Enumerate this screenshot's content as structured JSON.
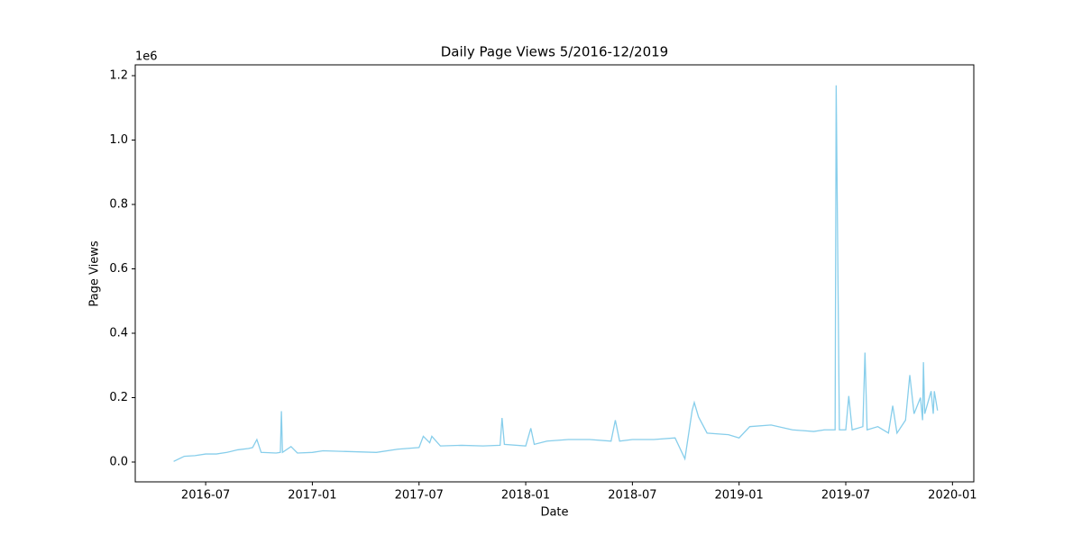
{
  "chart_data": {
    "type": "line",
    "title": "Daily Page Views 5/2016-12/2019",
    "x_label": "Date",
    "y_label": "Page Views",
    "y_offset_label": "1e6",
    "x": [
      2016.35,
      2016.4,
      2016.45,
      2016.5,
      2016.55,
      2016.6,
      2016.65,
      2016.7,
      2016.72,
      2016.74,
      2016.76,
      2016.83,
      2016.85,
      2016.855,
      2016.86,
      2016.9,
      2016.93,
      2017.0,
      2017.05,
      2017.2,
      2017.3,
      2017.4,
      2017.5,
      2017.52,
      2017.55,
      2017.56,
      2017.6,
      2017.7,
      2017.8,
      2017.88,
      2017.889,
      2017.9,
      2018.0,
      2018.024,
      2018.04,
      2018.1,
      2018.2,
      2018.3,
      2018.4,
      2018.42,
      2018.44,
      2018.5,
      2018.6,
      2018.7,
      2018.746,
      2018.78,
      2018.79,
      2018.81,
      2018.85,
      2018.95,
      2019.0,
      2019.05,
      2019.15,
      2019.25,
      2019.35,
      2019.4,
      2019.45,
      2019.455,
      2019.47,
      2019.5,
      2019.514,
      2019.53,
      2019.58,
      2019.59,
      2019.6,
      2019.65,
      2019.7,
      2019.72,
      2019.74,
      2019.78,
      2019.8,
      2019.82,
      2019.85,
      2019.86,
      2019.864,
      2019.87,
      2019.9,
      2019.91,
      2019.915,
      2019.93
    ],
    "series": [
      {
        "name": "Page Views",
        "color": "#87ceeb",
        "values": [
          2000,
          18000,
          20000,
          25000,
          25000,
          30000,
          38000,
          42000,
          45000,
          70000,
          30000,
          28000,
          30000,
          158000,
          30000,
          48000,
          28000,
          30000,
          35000,
          32000,
          30000,
          40000,
          45000,
          80000,
          60000,
          80000,
          50000,
          52000,
          50000,
          52000,
          137000,
          55000,
          50000,
          105000,
          55000,
          65000,
          70000,
          70000,
          65000,
          130000,
          65000,
          70000,
          70000,
          75000,
          10000,
          160000,
          185000,
          140000,
          90000,
          85000,
          75000,
          110000,
          115000,
          100000,
          95000,
          100000,
          100000,
          1170000,
          100000,
          100000,
          205000,
          100000,
          110000,
          340000,
          100000,
          110000,
          90000,
          175000,
          90000,
          130000,
          270000,
          150000,
          200000,
          130000,
          310000,
          150000,
          220000,
          150000,
          220000,
          160000
        ]
      }
    ],
    "xlim": [
      2016.17,
      2020.1
    ],
    "xticks": [
      {
        "value": 2016.5,
        "label": "2016-07"
      },
      {
        "value": 2017.0,
        "label": "2017-01"
      },
      {
        "value": 2017.5,
        "label": "2017-07"
      },
      {
        "value": 2018.0,
        "label": "2018-01"
      },
      {
        "value": 2018.5,
        "label": "2018-07"
      },
      {
        "value": 2019.0,
        "label": "2019-01"
      },
      {
        "value": 2019.5,
        "label": "2019-07"
      },
      {
        "value": 2020.0,
        "label": "2020-01"
      }
    ],
    "ylim": [
      -61500,
      1233600
    ],
    "yticks": [
      {
        "value": 0,
        "label": "0.0"
      },
      {
        "value": 200000,
        "label": "0.2"
      },
      {
        "value": 400000,
        "label": "0.4"
      },
      {
        "value": 600000,
        "label": "0.6"
      },
      {
        "value": 800000,
        "label": "0.8"
      },
      {
        "value": 1000000,
        "label": "1.0"
      },
      {
        "value": 1200000,
        "label": "1.2"
      }
    ]
  }
}
